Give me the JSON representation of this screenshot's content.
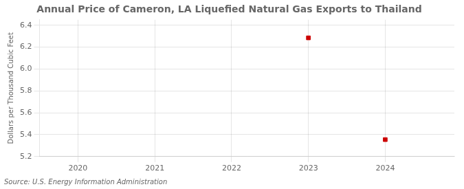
{
  "chart_data": {
    "type": "scatter",
    "title": "Annual Price of Cameron, LA Liquefied Natural Gas Exports to Thailand",
    "ylabel": "Dollars per Thousand Cubic Feet",
    "annotation": "Source: U.S. Energy Information Administration",
    "x": [
      2023,
      2024
    ],
    "values": [
      6.285,
      5.355
    ],
    "color": "#cc0000",
    "marker": "square",
    "xlim": [
      2019.5,
      2024.9
    ],
    "ylim": [
      5.2,
      6.45
    ],
    "xticks": [
      2020,
      2021,
      2022,
      2023,
      2024
    ],
    "yticks": [
      5.2,
      5.4,
      5.6,
      5.8,
      {
        "value": 6.0,
        "label": "6.0"
      },
      6.2,
      6.4
    ],
    "grid": true
  }
}
